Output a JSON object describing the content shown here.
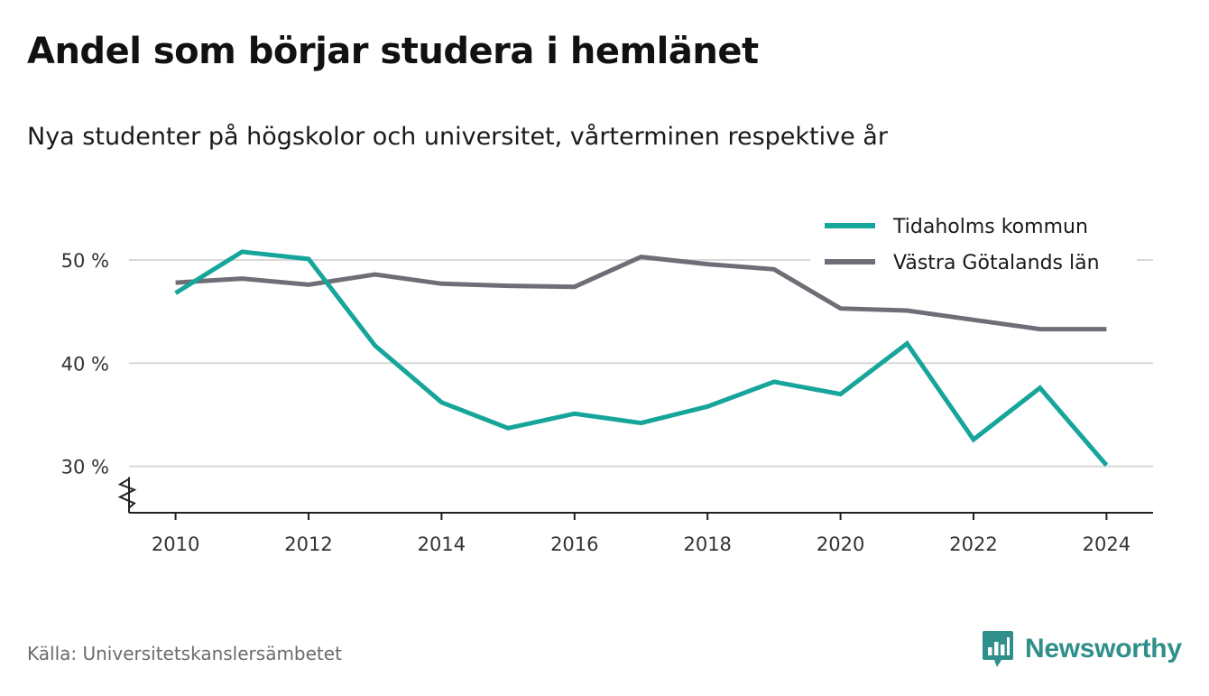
{
  "header": {
    "title": "Andel som börjar studera i hemlänet",
    "subtitle": "Nya studenter på högskolor och universitet, vårterminen respektive år"
  },
  "footer": {
    "source": "Källa: Universitetskanslersämbetet",
    "brand": "Newsworthy",
    "brand_icon": "bar-chart-speech-bubble-icon"
  },
  "colors": {
    "series_1": "#16a59a",
    "series_2": "#6e6e76",
    "grid": "#d8d8d8",
    "axis": "#222222",
    "brand": "#2f8f8a"
  },
  "chart_data": {
    "type": "line",
    "title": "Andel som börjar studera i hemlänet",
    "subtitle": "Nya studenter på högskolor och universitet, vårterminen respektive år",
    "xlabel": "",
    "ylabel": "",
    "x": [
      2010,
      2011,
      2012,
      2013,
      2014,
      2015,
      2016,
      2017,
      2018,
      2019,
      2020,
      2021,
      2022,
      2023,
      2024
    ],
    "xticks": [
      "2010",
      "2012",
      "2014",
      "2016",
      "2018",
      "2020",
      "2022",
      "2024"
    ],
    "yticks": [
      {
        "value": 30,
        "label": "30 %"
      },
      {
        "value": 40,
        "label": "40 %"
      },
      {
        "value": 50,
        "label": "50 %"
      }
    ],
    "ylim": [
      25.5,
      53.5
    ],
    "xlim": [
      2009.3,
      2024.7
    ],
    "y_axis_break": true,
    "grid": "horizontal",
    "legend_position": "top-right",
    "series": [
      {
        "name": "Tidaholms kommun",
        "values": [
          46.8,
          50.8,
          50.1,
          41.7,
          36.2,
          33.7,
          35.1,
          34.2,
          35.8,
          38.2,
          37.0,
          41.9,
          32.6,
          37.6,
          30.1
        ]
      },
      {
        "name": "Västra Götalands län",
        "values": [
          47.8,
          48.2,
          47.6,
          48.6,
          47.7,
          47.5,
          47.4,
          50.3,
          49.6,
          49.1,
          45.3,
          45.1,
          44.2,
          43.3,
          43.3
        ]
      }
    ]
  }
}
